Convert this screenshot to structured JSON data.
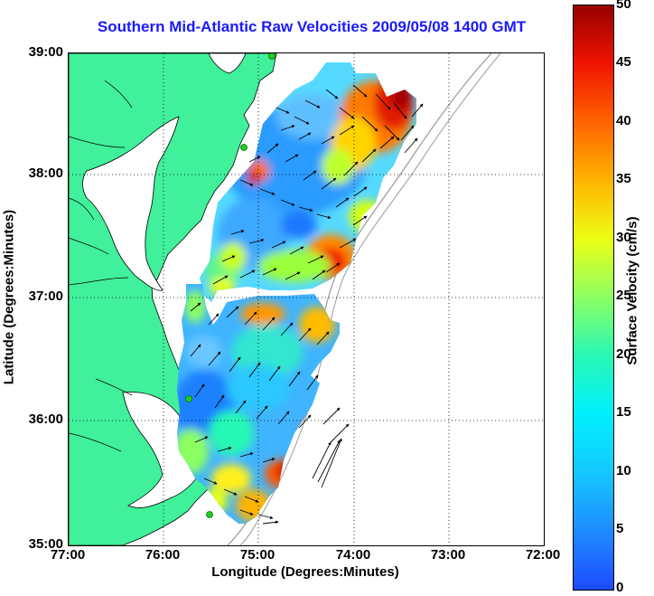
{
  "title": "Southern Mid-Atlantic Raw Velocities 2009/05/08 1400 GMT",
  "axes": {
    "xlabel": "Longitude (Degrees:Minutes)",
    "ylabel": "Latitude (Degrees:Minutes)",
    "xticks": [
      "77:00",
      "76:00",
      "75:00",
      "74:00",
      "73:00",
      "72:00"
    ],
    "yticks": [
      "39:00",
      "38:00",
      "37:00",
      "36:00",
      "35:00"
    ]
  },
  "colorbar": {
    "label": "Surface Velocity (cm/s)",
    "ticks": [
      "50",
      "45",
      "40",
      "35",
      "30",
      "25",
      "20",
      "15",
      "10",
      "5",
      "0"
    ],
    "min": 0,
    "max": 50
  },
  "colors": {
    "land": "#40f09a",
    "title": "#1a1aff",
    "station": "#22cc22"
  },
  "chart_data": {
    "type": "map",
    "xlim": [
      -77,
      -72
    ],
    "ylim": [
      35,
      39
    ],
    "grid": true,
    "units": "cm/s"
  }
}
